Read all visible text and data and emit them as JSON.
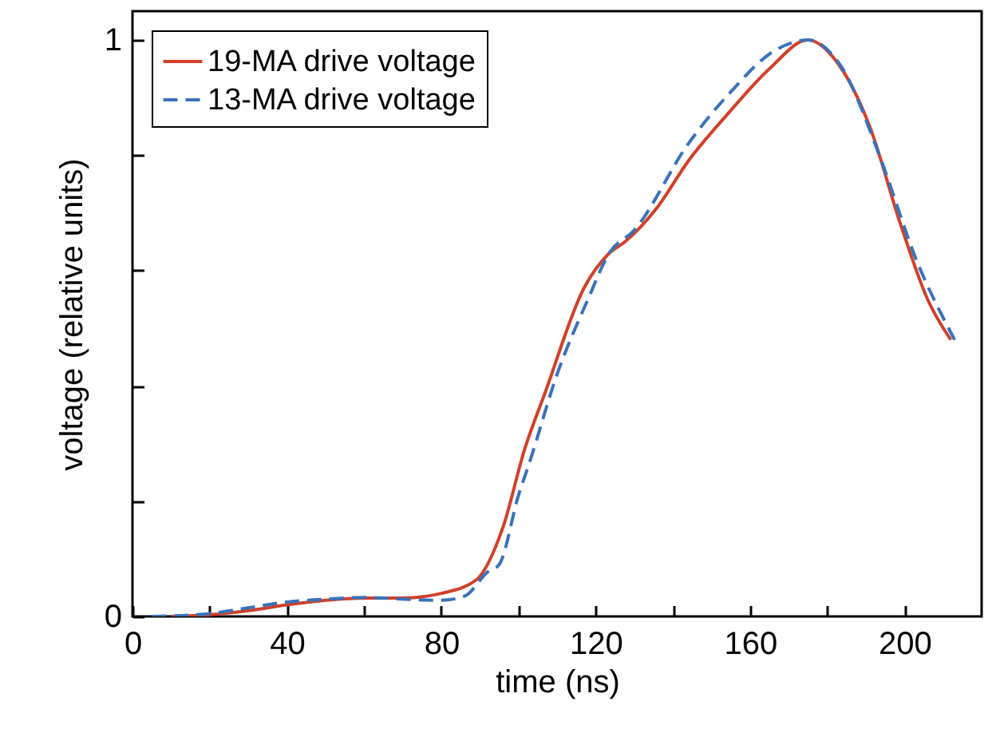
{
  "chart_data": {
    "type": "line",
    "xlabel": "time (ns)",
    "ylabel": "voltage (relative units)",
    "xlim": [
      0,
      220
    ],
    "ylim": [
      0,
      1.05
    ],
    "xticks": [
      0,
      {
        "value": 20,
        "label": null
      },
      40,
      {
        "value": 60,
        "label": null
      },
      80,
      {
        "value": 100,
        "label": null
      },
      120,
      {
        "value": 140,
        "label": null
      },
      160,
      {
        "value": 180,
        "label": null
      },
      200
    ],
    "yticks": [
      0,
      {
        "value": 0.2,
        "label": null
      },
      {
        "value": 0.4,
        "label": null
      },
      {
        "value": 0.6,
        "label": null
      },
      {
        "value": 0.8,
        "label": null
      },
      1
    ],
    "legend": "top left",
    "grid": false,
    "series": [
      {
        "name": "19-MA drive voltage",
        "color": "#d0402a",
        "line_style": "solid",
        "x": [
          10,
          20,
          30,
          40,
          50,
          60,
          70,
          75,
          80,
          89,
          96,
          101.6,
          107,
          117,
          123.5,
          127.6,
          136,
          144,
          154,
          165,
          175,
          182.7,
          191,
          199,
          206,
          212
        ],
        "values": [
          0,
          0.003,
          0.01,
          0.02,
          0.028,
          0.032,
          0.032,
          0.034,
          0.04,
          0.063,
          0.155,
          0.29,
          0.39,
          0.57,
          0.63,
          0.65,
          0.71,
          0.79,
          0.87,
          0.95,
          1,
          0.96,
          0.85,
          0.68,
          0.55,
          0.48
        ]
      },
      {
        "name": "13-MA drive voltage",
        "color": "#3a72b8",
        "line_style": "dashed",
        "x": [
          5,
          20,
          30,
          40,
          50,
          60,
          70,
          80,
          86,
          92,
          95,
          100,
          103,
          110,
          118,
          123.5,
          130,
          144,
          155,
          166,
          175,
          184,
          193.5,
          203,
          213
        ],
        "values": [
          0,
          0.005,
          0.015,
          0.025,
          0.03,
          0.033,
          0.03,
          0.028,
          0.035,
          0.077,
          0.09,
          0.21,
          0.27,
          0.42,
          0.55,
          0.63,
          0.67,
          0.82,
          0.91,
          0.98,
          1,
          0.95,
          0.8,
          0.62,
          0.48
        ]
      }
    ]
  }
}
